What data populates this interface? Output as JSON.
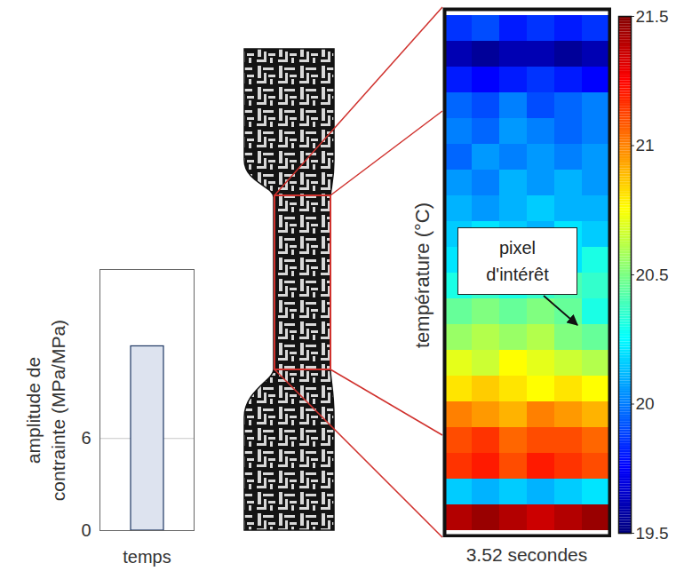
{
  "chart_data": [
    {
      "type": "bar",
      "categories": [
        null
      ],
      "values": [
        12
      ],
      "color": "#dde3ef",
      "x_label": "temps",
      "y_label": "amplitude de contrainte (MPa/MPa)",
      "ylim": [
        0,
        17
      ],
      "yticks": [
        0,
        6
      ],
      "grid": true,
      "tick_labels": "y"
    },
    {
      "type": "heatmap",
      "cells": [
        [
          19.85,
          19.9,
          19.8,
          19.85,
          19.8,
          19.85
        ],
        [
          19.6,
          19.55,
          19.6,
          19.6,
          19.55,
          19.6
        ],
        [
          19.8,
          19.75,
          19.8,
          19.85,
          19.8,
          19.75
        ],
        [
          19.95,
          19.9,
          20.0,
          19.9,
          19.95,
          20.0
        ],
        [
          20.0,
          19.95,
          20.05,
          20.0,
          19.95,
          20.0
        ],
        [
          19.95,
          20.05,
          20.0,
          20.05,
          20.0,
          20.05
        ],
        [
          20.05,
          20.0,
          20.1,
          20.05,
          20.1,
          20.05
        ],
        [
          20.1,
          20.05,
          20.1,
          20.15,
          20.1,
          20.1
        ],
        [
          20.15,
          20.2,
          20.15,
          20.1,
          20.2,
          20.15
        ],
        [
          20.2,
          20.25,
          20.2,
          20.25,
          20.2,
          20.3
        ],
        [
          20.3,
          20.35,
          20.3,
          20.35,
          20.4,
          20.35
        ],
        [
          20.45,
          20.5,
          20.45,
          20.5,
          20.45,
          20.3
        ],
        [
          20.55,
          20.6,
          20.55,
          20.6,
          20.5,
          20.45
        ],
        [
          20.7,
          20.65,
          20.75,
          20.7,
          20.65,
          20.6
        ],
        [
          20.8,
          20.85,
          20.8,
          20.75,
          20.8,
          20.75
        ],
        [
          21.0,
          20.95,
          20.9,
          21.0,
          20.95,
          20.9
        ],
        [
          21.1,
          21.15,
          21.05,
          21.1,
          21.1,
          21.05
        ],
        [
          21.15,
          21.2,
          21.1,
          21.2,
          21.15,
          21.1
        ],
        [
          20.15,
          20.1,
          20.15,
          20.1,
          20.15,
          20.2
        ],
        [
          21.4,
          21.45,
          21.4,
          21.35,
          21.4,
          21.45
        ]
      ],
      "colorbar": {
        "range": [
          19.5,
          21.5
        ],
        "ticks": [
          19.5,
          20,
          20.5,
          21,
          21.5
        ],
        "label": "température (°C)"
      },
      "annotation": "pixel d'intérêt",
      "caption": "3.52 secondes",
      "tick_labels": false
    }
  ]
}
